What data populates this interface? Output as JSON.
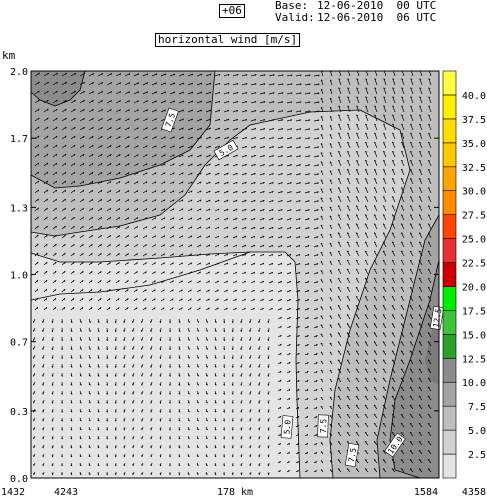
{
  "header": {
    "forecast_hour": "+06",
    "base_label": "Base:",
    "base_value": "12-06-2010  00 UTC",
    "valid_label": "Valid:",
    "valid_value": "12-06-2010  06 UTC",
    "field_title": "horizontal wind [m/s]"
  },
  "chart_data": {
    "type": "heatmap",
    "title": "horizontal wind [m/s]",
    "ylabel": "km",
    "ylim": [
      0.0,
      2.0
    ],
    "y_ticks": [
      "0.0",
      "0.3",
      "0.7",
      "1.0",
      "1.3",
      "1.7",
      "2.0"
    ],
    "y_tick_values": [
      0.0,
      0.33,
      0.67,
      1.0,
      1.33,
      1.67,
      2.0
    ],
    "x_labels": {
      "left_a": "1432",
      "left_b": "4243",
      "center": "178 km",
      "right_a": "1584",
      "right_b": "4358"
    },
    "colorbar": {
      "levels": [
        "2.5",
        "5.0",
        "7.5",
        "10.0",
        "12.5",
        "15.0",
        "17.5",
        "20.0",
        "22.5",
        "25.0",
        "27.5",
        "30.0",
        "32.5",
        "35.0",
        "37.5",
        "40.0"
      ],
      "bins": [
        {
          "from": 0.0,
          "to": 2.5,
          "color": "#e4e4e4"
        },
        {
          "from": 2.5,
          "to": 5.0,
          "color": "#d2d2d2"
        },
        {
          "from": 5.0,
          "to": 7.5,
          "color": "#bebebe"
        },
        {
          "from": 7.5,
          "to": 10.0,
          "color": "#a4a4a4"
        },
        {
          "from": 10.0,
          "to": 12.5,
          "color": "#8c8c8c"
        },
        {
          "from": 12.5,
          "to": 15.0,
          "color": "#2aa02a"
        },
        {
          "from": 15.0,
          "to": 17.5,
          "color": "#3dc43d"
        },
        {
          "from": 17.5,
          "to": 20.0,
          "color": "#00ee00"
        },
        {
          "from": 20.0,
          "to": 22.5,
          "color": "#cc0000"
        },
        {
          "from": 22.5,
          "to": 25.0,
          "color": "#e83030"
        },
        {
          "from": 25.0,
          "to": 27.5,
          "color": "#ff4500"
        },
        {
          "from": 27.5,
          "to": 30.0,
          "color": "#ff8c00"
        },
        {
          "from": 30.0,
          "to": 32.5,
          "color": "#ffa500"
        },
        {
          "from": 32.5,
          "to": 35.0,
          "color": "#ffc800"
        },
        {
          "from": 35.0,
          "to": 37.5,
          "color": "#ffdc00"
        },
        {
          "from": 37.5,
          "to": 40.0,
          "color": "#ffee00"
        },
        {
          "from": 40.0,
          "to": 42.5,
          "color": "#ffff40"
        }
      ]
    },
    "contour_labels": [
      "7.5",
      "5.0",
      "5.0",
      "7.5",
      "7.5",
      "10.0",
      "12.5"
    ]
  }
}
